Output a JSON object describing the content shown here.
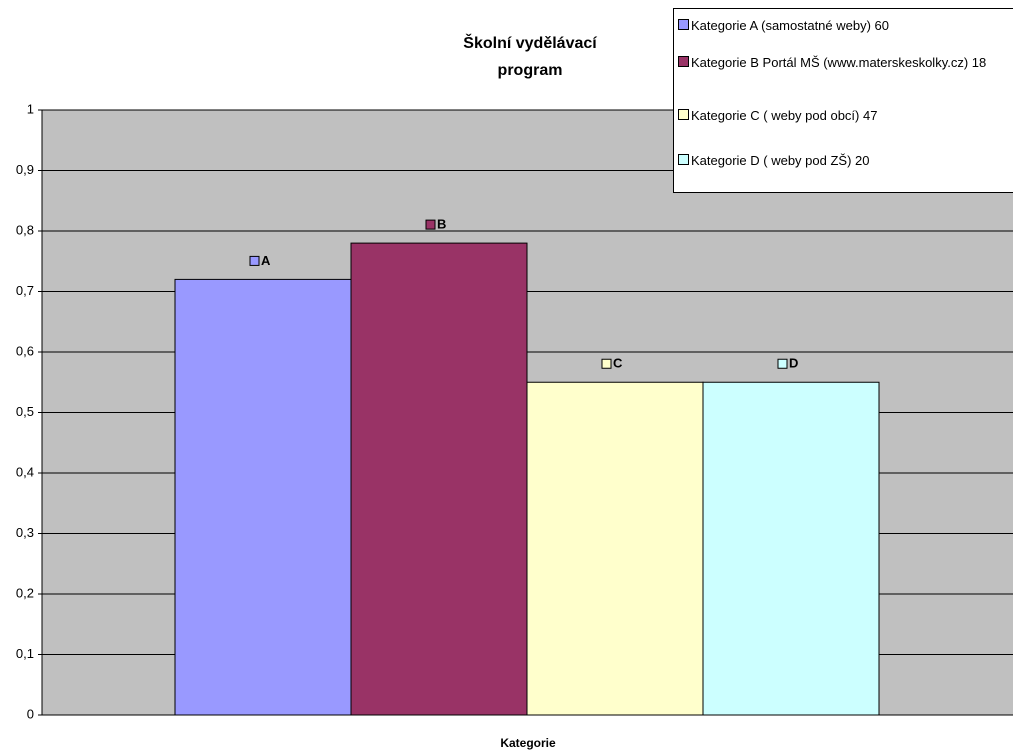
{
  "chart_data": {
    "type": "bar",
    "title": "Školní vydělávací program",
    "x_label": "Kategorie",
    "series": [
      {
        "name": "Kategorie A (samostatné weby) 60",
        "label": "A",
        "color": "#9999ff",
        "values": [
          0.72
        ]
      },
      {
        "name": "Kategorie B Portál MŠ (www.materskeskolky.cz) 18",
        "label": "B",
        "color": "#993366",
        "values": [
          0.78
        ]
      },
      {
        "name": "Kategorie C ( weby pod obcí) 47",
        "label": "C",
        "color": "#ffffcc",
        "values": [
          0.55
        ]
      },
      {
        "name": "Kategorie D ( weby pod ZŠ) 20",
        "label": "D",
        "color": "#ccffff",
        "values": [
          0.55
        ]
      }
    ],
    "ylim": [
      0,
      1
    ],
    "yticks": [
      0,
      {
        "value": 0.1,
        "label": "0,1"
      },
      {
        "value": 0.2,
        "label": "0,2"
      },
      {
        "value": 0.3,
        "label": "0,3"
      },
      {
        "value": 0.4,
        "label": "0,4"
      },
      {
        "value": 0.5,
        "label": "0,5"
      },
      {
        "value": 0.6,
        "label": "0,6"
      },
      {
        "value": 0.7,
        "label": "0,7"
      },
      {
        "value": 0.8,
        "label": "0,8"
      },
      {
        "value": 0.9,
        "label": "0,9"
      },
      1
    ],
    "grid": true
  }
}
